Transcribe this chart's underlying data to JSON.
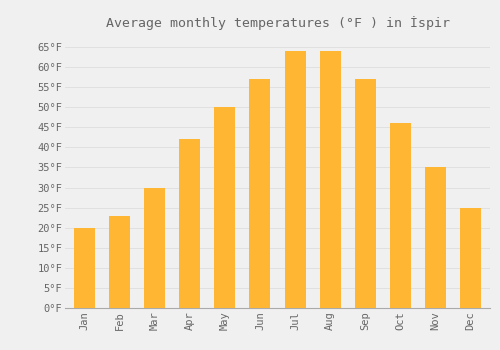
{
  "title": "Average monthly temperatures (°F ) in İspir",
  "months": [
    "Jan",
    "Feb",
    "Mar",
    "Apr",
    "May",
    "Jun",
    "Jul",
    "Aug",
    "Sep",
    "Oct",
    "Nov",
    "Dec"
  ],
  "values": [
    20,
    23,
    30,
    42,
    50,
    57,
    64,
    64,
    57,
    46,
    35,
    25
  ],
  "bar_color_top": "#FFCC55",
  "bar_color_bottom": "#F0A020",
  "background_color": "#F0F0F0",
  "grid_color": "#DDDDDD",
  "text_color": "#666666",
  "ylim": [
    0,
    68
  ],
  "yticks": [
    0,
    5,
    10,
    15,
    20,
    25,
    30,
    35,
    40,
    45,
    50,
    55,
    60,
    65
  ],
  "title_fontsize": 9.5,
  "tick_fontsize": 7.5,
  "bar_width": 0.6
}
